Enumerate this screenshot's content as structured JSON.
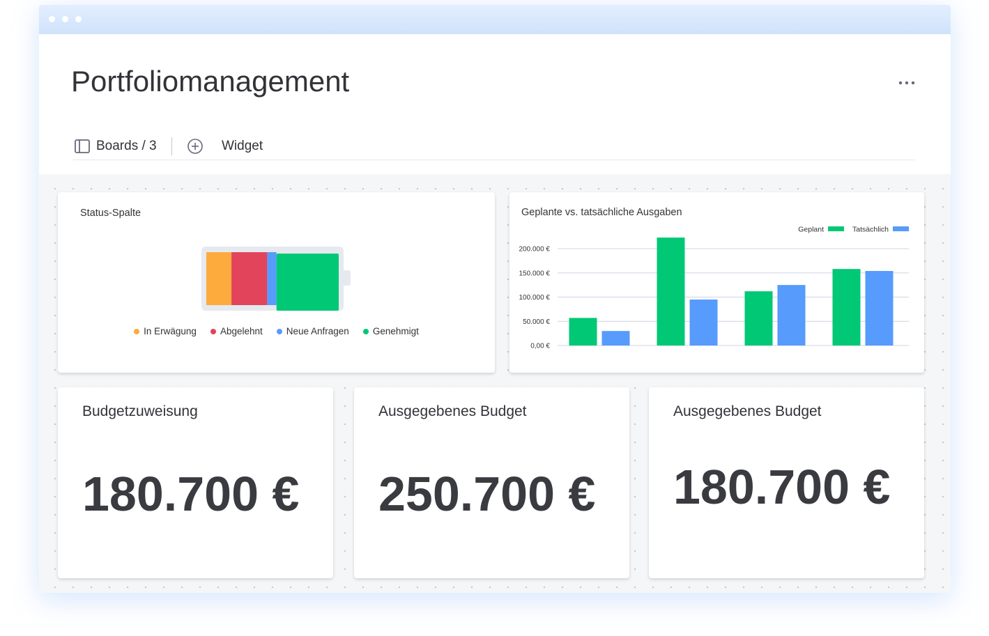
{
  "header": {
    "title": "Portfoliomanagement",
    "boards": "Boards / 3",
    "widget": "Widget"
  },
  "status_widget": {
    "title": "Status-Spalte",
    "segments": [
      {
        "name": "In Erwägung",
        "color": "#fdab3d",
        "value": 19
      },
      {
        "name": "Abgelehnt",
        "color": "#e2445c",
        "value": 27
      },
      {
        "name": "Neue Anfragen",
        "color": "#579bfc",
        "value": 7
      },
      {
        "name": "Genehmigt",
        "color": "#00c875",
        "value": 47
      }
    ]
  },
  "chart_data": {
    "type": "bar",
    "title": "Geplante vs. tatsächliche Ausgaben",
    "categories": [
      null,
      null,
      null,
      null
    ],
    "series": [
      {
        "name": "Geplant",
        "color": "#00c875",
        "values": [
          57000,
          223000,
          112000,
          158000
        ]
      },
      {
        "name": "Tatsächlich",
        "color": "#579bfc",
        "values": [
          30000,
          95000,
          125000,
          154000
        ]
      }
    ],
    "ylim": [
      0,
      200000
    ],
    "yticks": [
      {
        "value": 0,
        "label": "0,00 €"
      },
      {
        "value": 50000,
        "label": "50.000 €"
      },
      {
        "value": 100000,
        "label": "100.000 €"
      },
      {
        "value": 150000,
        "label": "150.000 €"
      },
      {
        "value": 200000,
        "label": "200.000 €"
      }
    ],
    "grid": true,
    "legend": "top-right"
  },
  "kpis": [
    {
      "title": "Budgetzuweisung",
      "value": "180.700 €"
    },
    {
      "title": "Ausgegebenes Budget",
      "value": "250.700 €"
    },
    {
      "title": "Ausgegebenes Budget",
      "value": "180.700 €"
    }
  ]
}
